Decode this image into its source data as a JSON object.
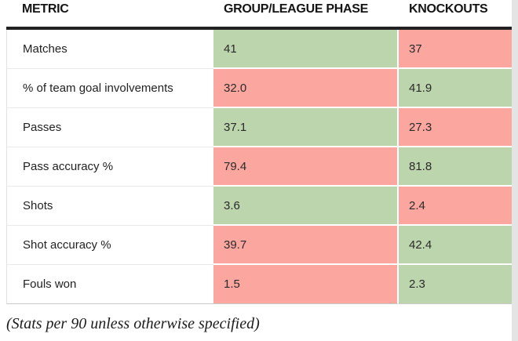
{
  "chart_data": {
    "type": "table",
    "columns": [
      "METRIC",
      "GROUP/LEAGUE PHASE",
      "KNOCKOUTS"
    ],
    "rows": [
      {
        "metric": "Matches",
        "values": [
          "41",
          "37"
        ],
        "highlights": [
          "better",
          "worse"
        ]
      },
      {
        "metric": "% of team goal involvements",
        "values": [
          "32.0",
          "41.9"
        ],
        "highlights": [
          "worse",
          "better"
        ]
      },
      {
        "metric": "Passes",
        "values": [
          "37.1",
          "27.3"
        ],
        "highlights": [
          "better",
          "worse"
        ]
      },
      {
        "metric": "Pass accuracy %",
        "values": [
          "79.4",
          "81.8"
        ],
        "highlights": [
          "worse",
          "better"
        ]
      },
      {
        "metric": "Shots",
        "values": [
          "3.6",
          "2.4"
        ],
        "highlights": [
          "better",
          "worse"
        ]
      },
      {
        "metric": "Shot accuracy %",
        "values": [
          "39.7",
          "42.4"
        ],
        "highlights": [
          "worse",
          "better"
        ]
      },
      {
        "metric": "Fouls won",
        "values": [
          "1.5",
          "2.3"
        ],
        "highlights": [
          "worse",
          "better"
        ]
      }
    ],
    "highlight_colors": {
      "better": "#bcd5ac",
      "worse": "#fca6a0"
    },
    "highlight_meaning": "green = better value for that metric, red = worse value",
    "footnote": "(Stats per 90 unless otherwise specified)"
  }
}
